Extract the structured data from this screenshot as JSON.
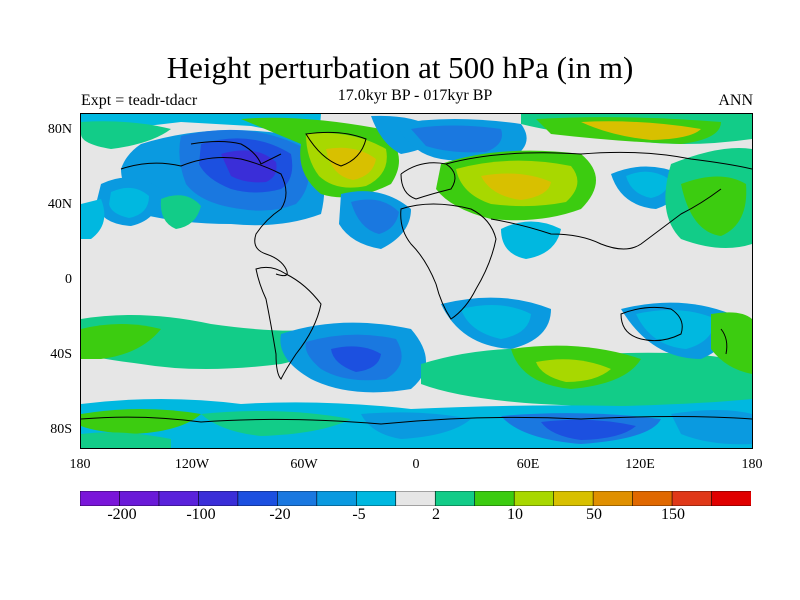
{
  "title": "Height perturbation at 500 hPa (in m)",
  "subtitle": "17.0kyr BP - 017kyr BP",
  "experiment": "Expt = teadr-tdacr",
  "season": "ANN",
  "map": {
    "projection": "cylindrical-equidistant",
    "background_color": "#e6e6e6",
    "lon_ticks": [
      "180",
      "120W",
      "60W",
      "0",
      "60E",
      "120E",
      "180"
    ],
    "lat_ticks": [
      "80N",
      "40N",
      "0",
      "40S",
      "80S"
    ]
  },
  "colorbar": {
    "colors": [
      "#7a16d9",
      "#6a1ad8",
      "#5a22db",
      "#3a2ed8",
      "#1c50e0",
      "#1a78e0",
      "#0a9ae0",
      "#00b8e0",
      "#e6e6e6",
      "#12cc88",
      "#3ccc10",
      "#a8d800",
      "#d8c000",
      "#e09000",
      "#e06800",
      "#e03818",
      "#e00000"
    ],
    "labels": [
      "-200",
      "-100",
      "-20",
      "-5",
      "2",
      "10",
      "50",
      "150"
    ]
  },
  "chart_data": {
    "type": "heatmap",
    "title": "Height perturbation at 500 hPa (in m)",
    "subtitle": "17.0kyr BP - 017kyr BP",
    "variable": "500 hPa geopotential height perturbation (m)",
    "x_range": [
      -180,
      180
    ],
    "y_range": [
      -90,
      90
    ],
    "contour_levels": [
      -200,
      -150,
      -100,
      -50,
      -20,
      -10,
      -5,
      -2,
      2,
      5,
      10,
      20,
      50,
      100,
      150,
      200
    ],
    "features": [
      {
        "lon": -95,
        "lat": 60,
        "value": -120
      },
      {
        "lon": -100,
        "lat": 42,
        "value": -20
      },
      {
        "lon": -160,
        "lat": 35,
        "value": -10
      },
      {
        "lon": -35,
        "lat": 60,
        "value": 40
      },
      {
        "lon": -30,
        "lat": 42,
        "value": -15
      },
      {
        "lon": 15,
        "lat": 68,
        "value": -20
      },
      {
        "lon": 45,
        "lat": 50,
        "value": 50
      },
      {
        "lon": 90,
        "lat": 60,
        "value": 15
      },
      {
        "lon": 140,
        "lat": 40,
        "value": 10
      },
      {
        "lon": 50,
        "lat": -25,
        "value": -8
      },
      {
        "lon": -55,
        "lat": -50,
        "value": -15
      },
      {
        "lon": 135,
        "lat": -40,
        "value": 8
      },
      {
        "lon": -150,
        "lat": -45,
        "value": 5
      },
      {
        "lon": 100,
        "lat": -60,
        "value": 10
      },
      {
        "lon": 140,
        "lat": -75,
        "value": -20
      }
    ]
  }
}
